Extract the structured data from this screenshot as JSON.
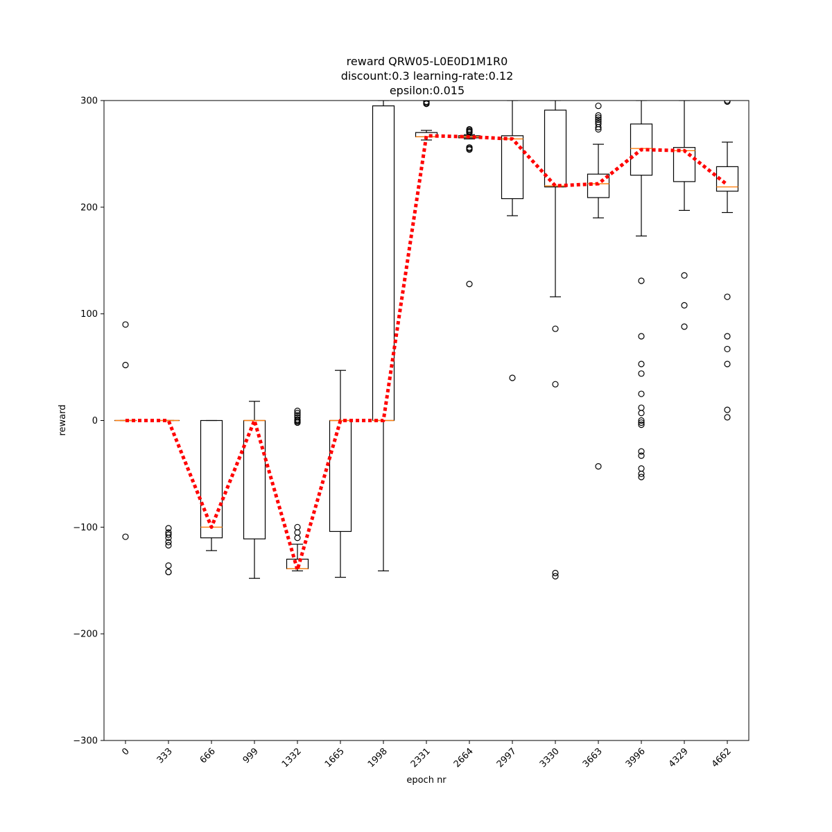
{
  "chart_data": {
    "type": "box",
    "title_lines": [
      "reward QRW05-L0E0D1M1R0",
      "discount:0.3 learning-rate:0.12",
      "epsilon:0.015"
    ],
    "xlabel": "epoch nr",
    "ylabel": "reward",
    "ylim": [
      -300,
      300
    ],
    "yticks": [
      -300,
      -200,
      -100,
      0,
      100,
      200,
      300
    ],
    "ytick_labels": [
      "−300",
      "−200",
      "−100",
      "0",
      "100",
      "200",
      "300"
    ],
    "categories": [
      "0",
      "333",
      "666",
      "999",
      "1332",
      "1665",
      "1998",
      "2331",
      "2664",
      "2997",
      "3330",
      "3663",
      "3996",
      "4329",
      "4662"
    ],
    "boxes": [
      {
        "whisker_low": 0,
        "q1": 0,
        "median": 0,
        "q3": 0,
        "whisker_high": 0,
        "outliers": [
          90,
          52,
          -109
        ]
      },
      {
        "whisker_low": 0,
        "q1": 0,
        "median": 0,
        "q3": 0,
        "whisker_high": 0,
        "outliers": [
          -101,
          -105,
          -107,
          -110,
          -114,
          -117,
          -136,
          -142,
          -142
        ]
      },
      {
        "whisker_low": -122,
        "q1": -110,
        "median": -100,
        "q3": 0,
        "whisker_high": 0,
        "outliers": []
      },
      {
        "whisker_low": -148,
        "q1": -111,
        "median": 0,
        "q3": 0,
        "whisker_high": 18,
        "outliers": []
      },
      {
        "whisker_low": -141,
        "q1": -139,
        "median": -139,
        "q3": -130,
        "whisker_high": -116,
        "outliers": [
          9,
          7,
          5,
          3,
          1,
          0,
          -1,
          -2,
          -100,
          -105,
          -110
        ]
      },
      {
        "whisker_low": -147,
        "q1": -104,
        "median": 0,
        "q3": 0,
        "whisker_high": 47,
        "outliers": []
      },
      {
        "whisker_low": -141,
        "q1": 0,
        "median": 0,
        "q3": 295,
        "whisker_high": 300,
        "outliers": []
      },
      {
        "whisker_low": 263,
        "q1": 266,
        "median": 266,
        "q3": 270,
        "whisker_high": 272,
        "outliers": [
          299,
          298,
          297,
          297
        ]
      },
      {
        "whisker_low": 264,
        "q1": 265,
        "median": 266,
        "q3": 267,
        "whisker_high": 268,
        "outliers": [
          273,
          272,
          271,
          270,
          256,
          255,
          254,
          128
        ]
      },
      {
        "whisker_low": 192,
        "q1": 208,
        "median": 264,
        "q3": 267,
        "whisker_high": 300,
        "outliers": [
          40
        ]
      },
      {
        "whisker_low": 116,
        "q1": 219,
        "median": 220,
        "q3": 291,
        "whisker_high": 300,
        "outliers": [
          86,
          34,
          -143,
          -146
        ]
      },
      {
        "whisker_low": 190,
        "q1": 209,
        "median": 222,
        "q3": 231,
        "whisker_high": 259,
        "outliers": [
          295,
          286,
          284,
          282,
          280,
          278,
          275,
          273,
          -43
        ]
      },
      {
        "whisker_low": 173,
        "q1": 230,
        "median": 255,
        "q3": 278,
        "whisker_high": 300,
        "outliers": [
          131,
          79,
          53,
          44,
          25,
          12,
          7,
          0,
          -2,
          -4,
          -29,
          -33,
          -45,
          -50,
          -53
        ]
      },
      {
        "whisker_low": 197,
        "q1": 224,
        "median": 253,
        "q3": 256,
        "whisker_high": 300,
        "outliers": [
          136,
          108,
          88
        ]
      },
      {
        "whisker_low": 195,
        "q1": 215,
        "median": 219,
        "q3": 238,
        "whisker_high": 261,
        "outliers": [
          300,
          299,
          116,
          79,
          67,
          53,
          10,
          3
        ]
      }
    ],
    "mean_line": {
      "values": [
        0,
        0,
        -100,
        0,
        -140,
        0,
        0,
        267,
        266,
        264,
        220,
        222,
        254,
        253,
        221
      ],
      "color": "#ff0000",
      "style": "dotted"
    },
    "box_color": "#000000",
    "median_color": "#ff7f0e",
    "grid": false
  }
}
